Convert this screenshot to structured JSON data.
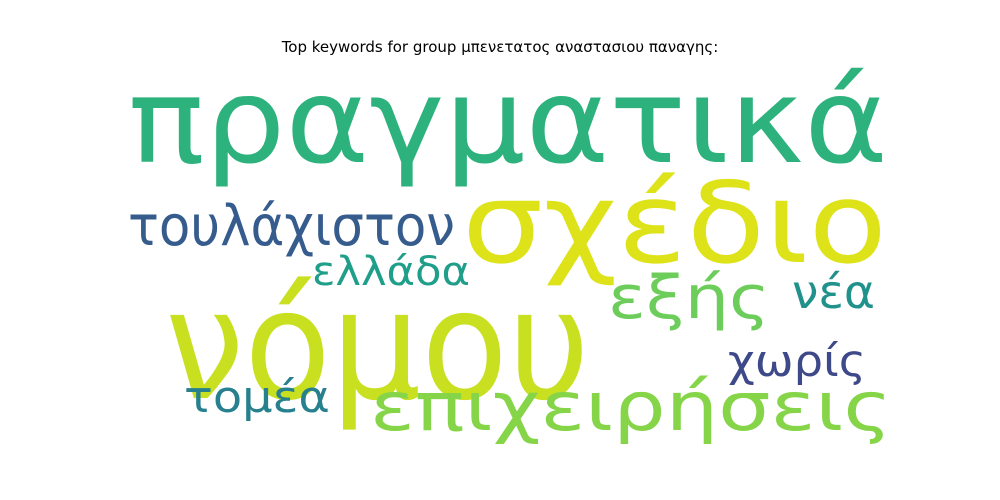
{
  "chart_data": {
    "type": "wordcloud",
    "title": "Top keywords for group μπενετατος αναστασιου παναγης:",
    "words": [
      {
        "text": "πραγματικά",
        "color": "#2db27d"
      },
      {
        "text": "σχέδιο",
        "color": "#dde318"
      },
      {
        "text": "νόμου",
        "color": "#c8e020"
      },
      {
        "text": "τουλάχιστον",
        "color": "#365c8d"
      },
      {
        "text": "ελλάδα",
        "color": "#1f9e89"
      },
      {
        "text": "εξής",
        "color": "#6ccd5a"
      },
      {
        "text": "νέα",
        "color": "#21918c"
      },
      {
        "text": "χωρίς",
        "color": "#3e4989"
      },
      {
        "text": "τομέα",
        "color": "#27808e"
      },
      {
        "text": "επιχειρήσεις",
        "color": "#86d549"
      }
    ]
  }
}
